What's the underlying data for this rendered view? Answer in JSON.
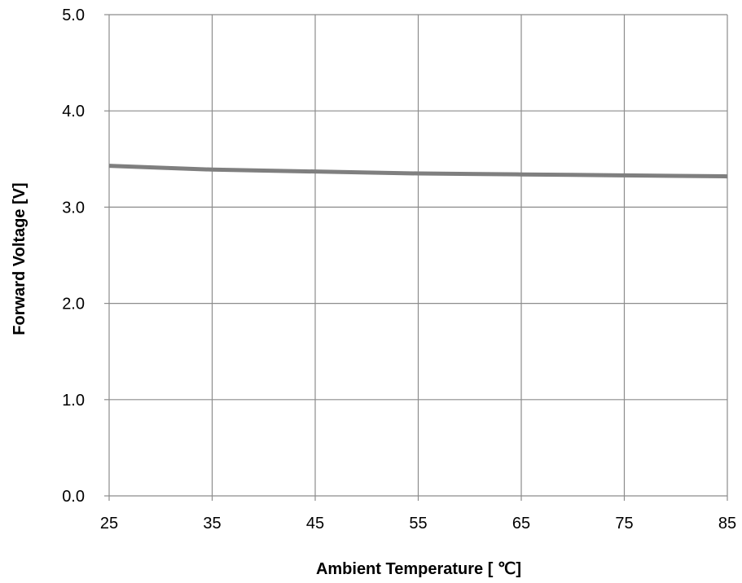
{
  "chart_data": {
    "type": "line",
    "title": "",
    "xlabel": "Ambient Temperature [ ℃]",
    "ylabel": "Forward Voltage [V]",
    "xlim": [
      25,
      85
    ],
    "ylim": [
      0.0,
      5.0
    ],
    "x_ticks": [
      "25",
      "35",
      "45",
      "55",
      "65",
      "75",
      "85"
    ],
    "y_ticks": [
      "0.0",
      "1.0",
      "2.0",
      "3.0",
      "4.0",
      "5.0"
    ],
    "grid": true,
    "series": [
      {
        "color": "#7f7f7f",
        "x": [
          25,
          30,
          35,
          40,
          45,
          50,
          55,
          60,
          65,
          70,
          75,
          80,
          85
        ],
        "y": [
          3.43,
          3.41,
          3.39,
          3.38,
          3.37,
          3.36,
          3.35,
          3.345,
          3.34,
          3.335,
          3.33,
          3.325,
          3.32
        ]
      }
    ]
  }
}
